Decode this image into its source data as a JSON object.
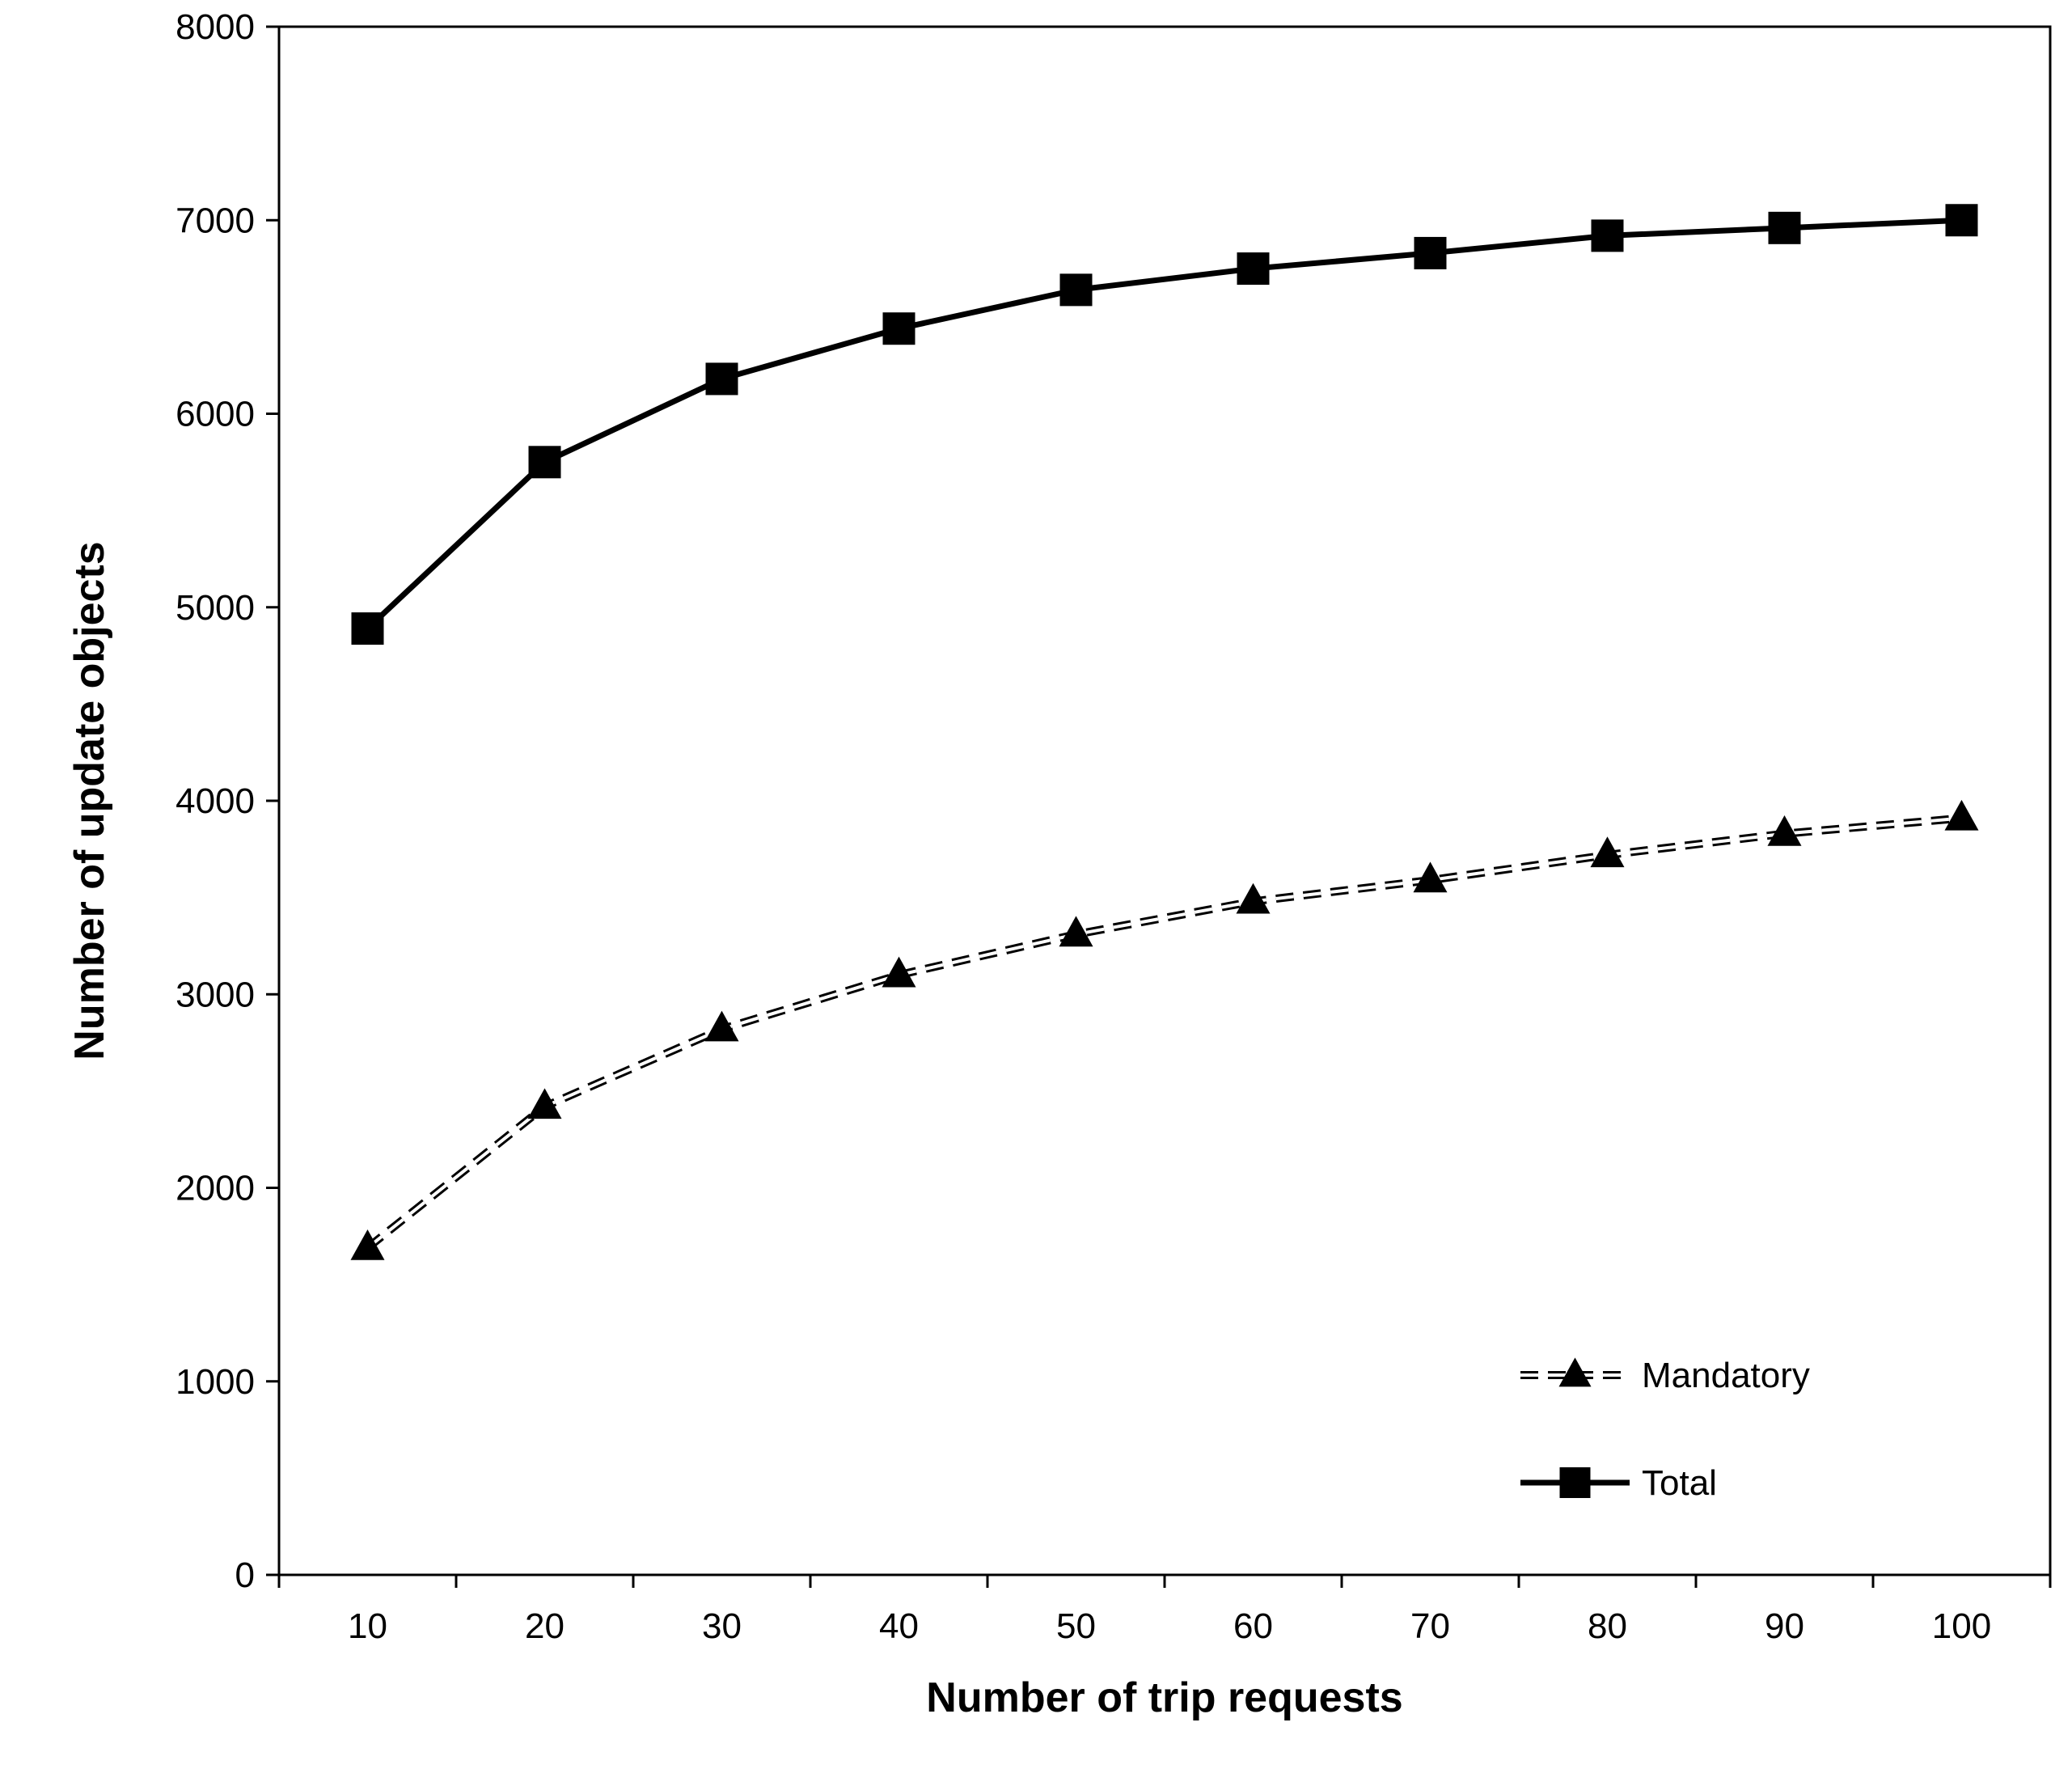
{
  "chart_data": {
    "type": "line",
    "title": "",
    "xlabel": "Number of trip requests",
    "ylabel": "Number of update objects",
    "x": [
      10,
      20,
      30,
      40,
      50,
      60,
      70,
      80,
      90,
      100
    ],
    "x_tick_labels": [
      "10",
      "20",
      "30",
      "40",
      "50",
      "60",
      "70",
      "80",
      "90",
      "100"
    ],
    "y_tick_labels": [
      "0",
      "1000",
      "2000",
      "3000",
      "4000",
      "5000",
      "6000",
      "7000",
      "8000"
    ],
    "ylim": [
      0,
      8000
    ],
    "grid": false,
    "legend_placement": "bottom-right",
    "series": [
      {
        "name": "Mandatory",
        "marker": "triangle",
        "line_style": "dashed",
        "color": "#000000",
        "values": [
          1690,
          2420,
          2820,
          3100,
          3310,
          3480,
          3590,
          3720,
          3830,
          3910
        ]
      },
      {
        "name": "Total",
        "marker": "square",
        "line_style": "solid",
        "color": "#000000",
        "values": [
          4890,
          5750,
          6180,
          6440,
          6640,
          6750,
          6830,
          6920,
          6960,
          7000
        ]
      }
    ]
  }
}
